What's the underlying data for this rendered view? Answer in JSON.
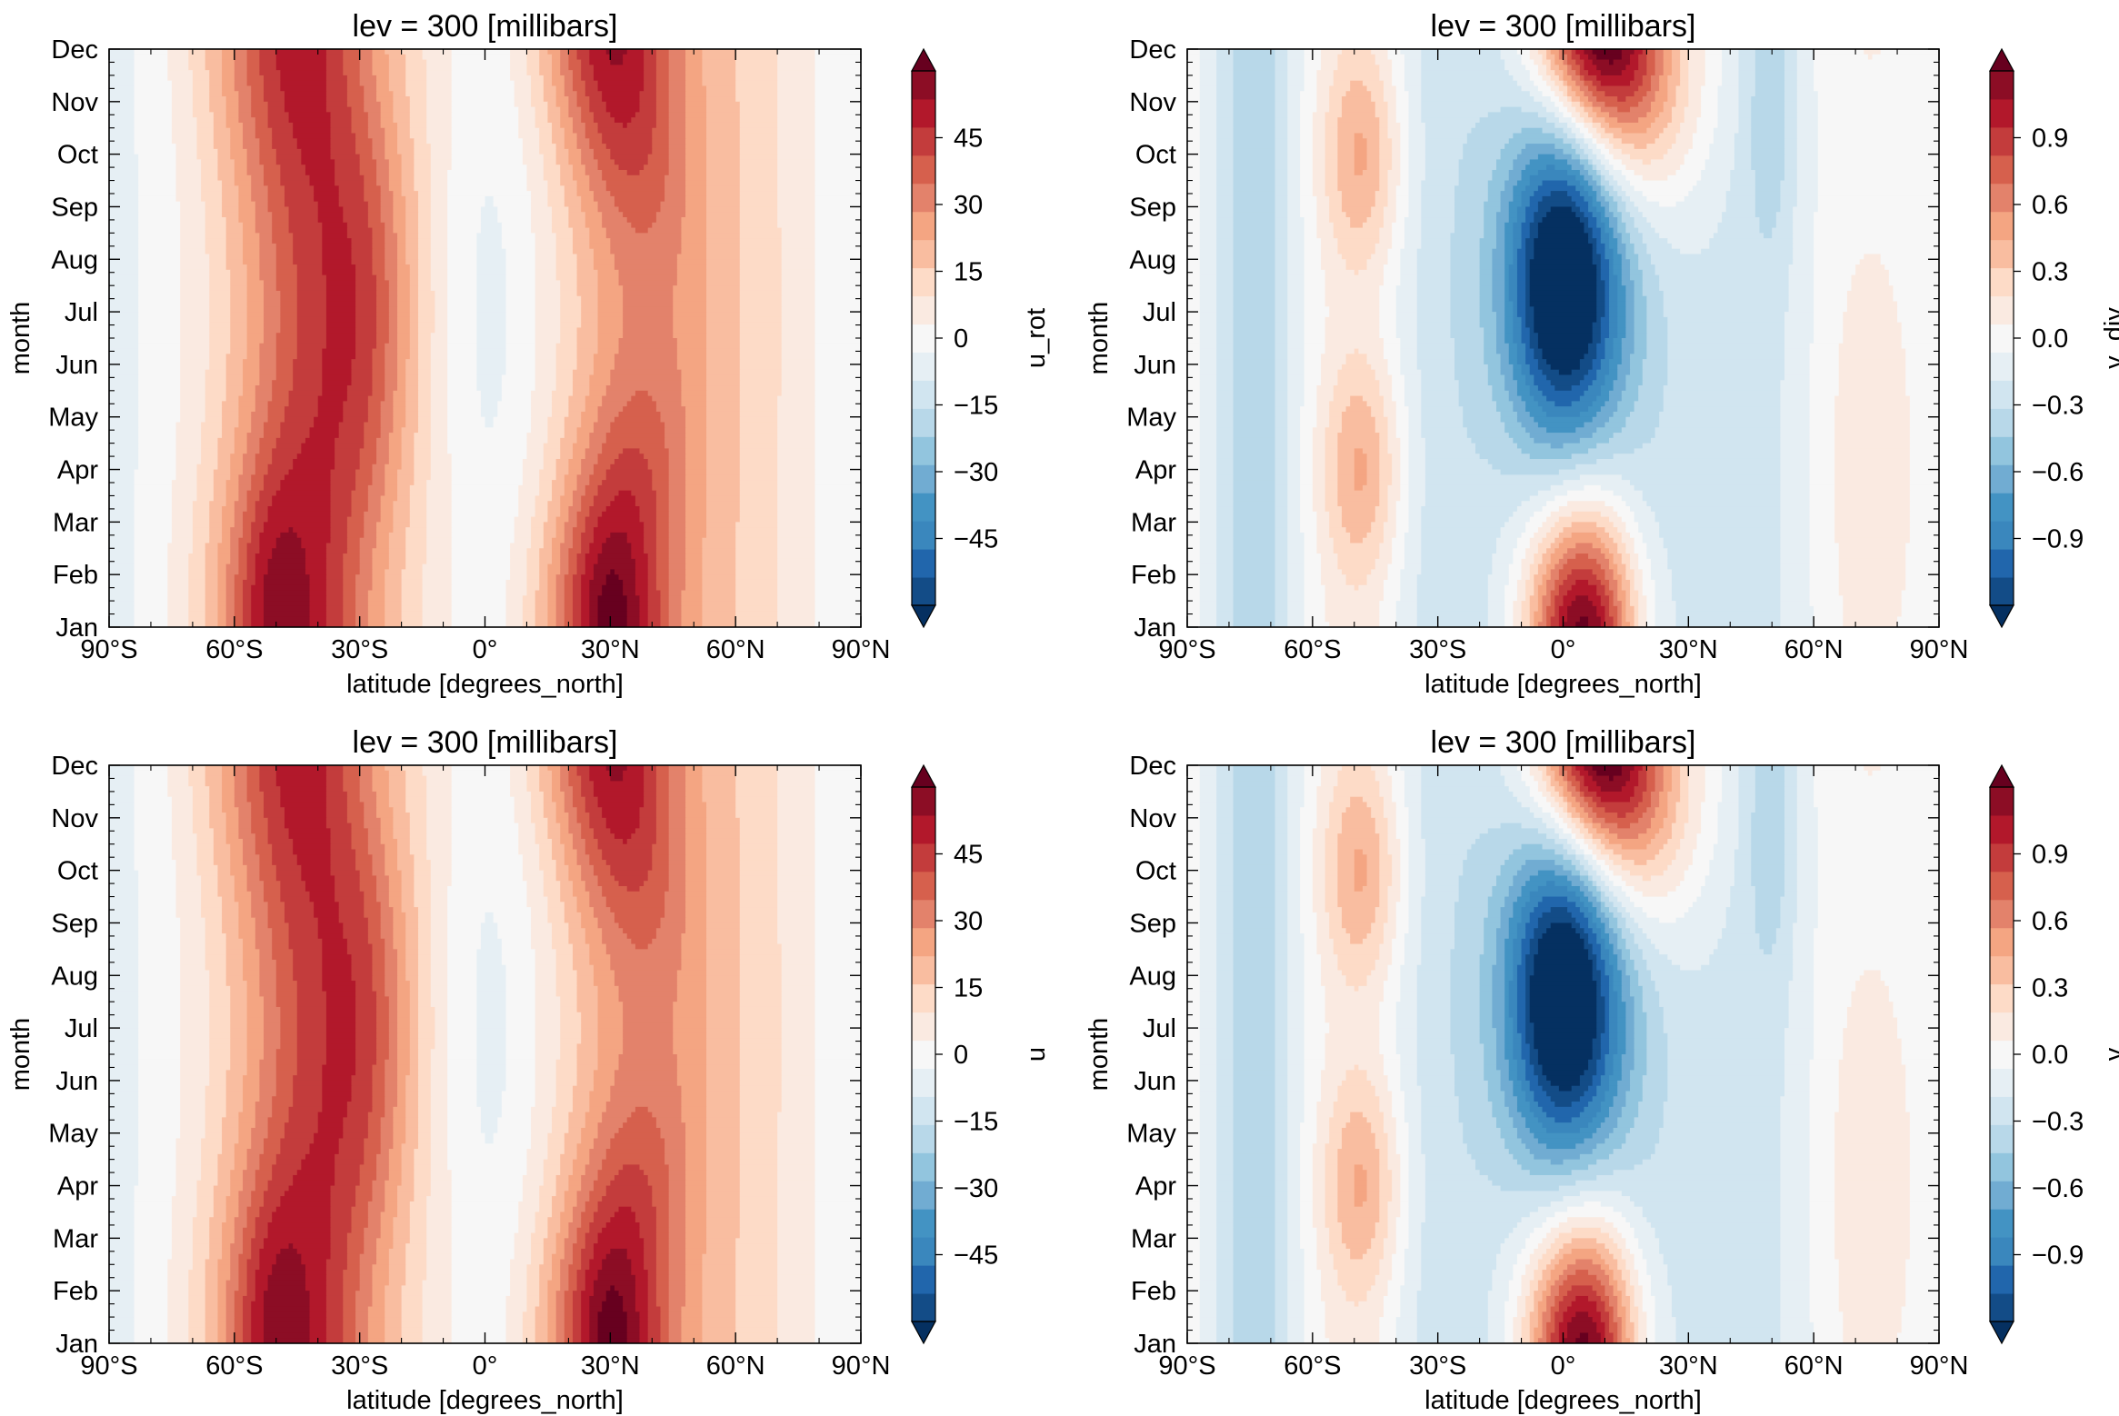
{
  "chart_data": [
    {
      "type": "heatmap",
      "title": "lev = 300 [millibars]",
      "xlabel": "latitude [degrees_north]",
      "ylabel": "month",
      "x_ticks": [
        "90°S",
        "60°S",
        "30°S",
        "0°",
        "30°N",
        "60°N",
        "90°N"
      ],
      "y_ticks": [
        "Jan",
        "Feb",
        "Mar",
        "Apr",
        "May",
        "Jun",
        "Jul",
        "Aug",
        "Sep",
        "Oct",
        "Nov",
        "Dec"
      ],
      "xlim": [
        -90,
        90
      ],
      "colorbar": {
        "label": "u_rot",
        "ticks": [
          "45",
          "30",
          "15",
          "0",
          "−15",
          "−30",
          "−45"
        ],
        "range": [
          -50,
          50
        ],
        "extend": "both"
      },
      "field": {
        "var": "u",
        "features": [
          {
            "lat": -47,
            "month": 1,
            "value": 40
          },
          {
            "lat": -30,
            "month": 7.5,
            "value": 34
          },
          {
            "lat": 30,
            "month": 1,
            "value": 46
          },
          {
            "lat": 33,
            "month": 12,
            "value": 32
          },
          {
            "lat": 0,
            "month": 8,
            "value": -6
          }
        ]
      }
    },
    {
      "type": "heatmap",
      "title": "lev = 300 [millibars]",
      "xlabel": "latitude [degrees_north]",
      "ylabel": "month",
      "x_ticks": [
        "90°S",
        "60°S",
        "30°S",
        "0°",
        "30°N",
        "60°N",
        "90°N"
      ],
      "y_ticks": [
        "Jan",
        "Feb",
        "Mar",
        "Apr",
        "May",
        "Jun",
        "Jul",
        "Aug",
        "Sep",
        "Oct",
        "Nov",
        "Dec"
      ],
      "xlim": [
        -90,
        90
      ],
      "colorbar": {
        "label": "v_div",
        "ticks": [
          "0.9",
          "0.6",
          "0.3",
          "0.0",
          "−0.3",
          "−0.6",
          "−0.9"
        ],
        "range": [
          -1.0,
          1.0
        ],
        "extend": "both"
      },
      "field": {
        "var": "v",
        "features": [
          {
            "lat": 0,
            "month": 7.5,
            "value": -1.05
          },
          {
            "lat": 5,
            "month": 1,
            "value": 0.95
          },
          {
            "lat": 10,
            "month": 12,
            "value": 0.8
          },
          {
            "lat": -48,
            "month": 10,
            "value": 0.55
          },
          {
            "lat": -72,
            "month": 5,
            "value": -0.35
          }
        ]
      }
    },
    {
      "type": "heatmap",
      "title": "lev = 300 [millibars]",
      "xlabel": "latitude [degrees_north]",
      "ylabel": "month",
      "x_ticks": [
        "90°S",
        "60°S",
        "30°S",
        "0°",
        "30°N",
        "60°N",
        "90°N"
      ],
      "y_ticks": [
        "Jan",
        "Feb",
        "Mar",
        "Apr",
        "May",
        "Jun",
        "Jul",
        "Aug",
        "Sep",
        "Oct",
        "Nov",
        "Dec"
      ],
      "xlim": [
        -90,
        90
      ],
      "colorbar": {
        "label": "u",
        "ticks": [
          "45",
          "30",
          "15",
          "0",
          "−15",
          "−30",
          "−45"
        ],
        "range": [
          -50,
          50
        ],
        "extend": "both"
      },
      "field": {
        "var": "u",
        "features": [
          {
            "lat": -47,
            "month": 1,
            "value": 40
          },
          {
            "lat": -30,
            "month": 7.5,
            "value": 34
          },
          {
            "lat": 30,
            "month": 1,
            "value": 46
          },
          {
            "lat": 33,
            "month": 12,
            "value": 32
          },
          {
            "lat": 0,
            "month": 8,
            "value": -6
          }
        ]
      }
    },
    {
      "type": "heatmap",
      "title": "lev = 300 [millibars]",
      "xlabel": "latitude [degrees_north]",
      "ylabel": "month",
      "x_ticks": [
        "90°S",
        "60°S",
        "30°S",
        "0°",
        "30°N",
        "60°N",
        "90°N"
      ],
      "y_ticks": [
        "Jan",
        "Feb",
        "Mar",
        "Apr",
        "May",
        "Jun",
        "Jul",
        "Aug",
        "Sep",
        "Oct",
        "Nov",
        "Dec"
      ],
      "xlim": [
        -90,
        90
      ],
      "colorbar": {
        "label": "v",
        "ticks": [
          "0.9",
          "0.6",
          "0.3",
          "0.0",
          "−0.3",
          "−0.6",
          "−0.9"
        ],
        "range": [
          -1.0,
          1.0
        ],
        "extend": "both"
      },
      "field": {
        "var": "v",
        "features": [
          {
            "lat": 0,
            "month": 7.5,
            "value": -1.05
          },
          {
            "lat": 5,
            "month": 1,
            "value": 0.95
          },
          {
            "lat": 10,
            "month": 12,
            "value": 0.8
          },
          {
            "lat": -48,
            "month": 10,
            "value": 0.55
          },
          {
            "lat": -72,
            "month": 5,
            "value": -0.35
          }
        ]
      }
    }
  ],
  "colors": {
    "palette": [
      "#053061",
      "#134c87",
      "#2166ac",
      "#3a87bd",
      "#4393c3",
      "#71acd2",
      "#92c5de",
      "#b8d8e9",
      "#d1e5f0",
      "#e6eff4",
      "#f7f7f7",
      "#faeae1",
      "#fddbc7",
      "#f9bda0",
      "#f4a582",
      "#e3826b",
      "#d6604d",
      "#c33c3c",
      "#b2182b",
      "#8c0d25",
      "#67001f"
    ]
  }
}
